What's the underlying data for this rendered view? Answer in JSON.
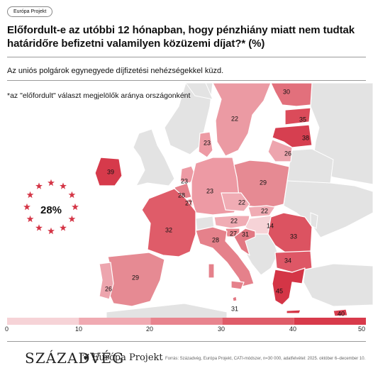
{
  "badge": "Európa Projekt",
  "title_line1": "Előfordult-e az utóbbi 12 hónapban, hogy pénzhiány miatt nem tudtak",
  "title_line2": "határidőre befizetni valamilyen közüzemi díjat?* (%)",
  "subtitle": "Az uniós polgárok egynegyede díjfizetési nehézségekkel küzd.",
  "note": "*az \"előfordult\" választ megjelölők aránya országonként",
  "eu_average": "28%",
  "legend": {
    "ticks": [
      "0",
      "10",
      "20",
      "30",
      "40",
      "50"
    ],
    "colors": [
      "#f6d3d7",
      "#f0aab2",
      "#e8848e",
      "#df5c69",
      "#d83a4b"
    ]
  },
  "countries": [
    {
      "name": "Finnország",
      "value": "30"
    },
    {
      "name": "Svédország",
      "value": "22"
    },
    {
      "name": "Észtország",
      "value": "35"
    },
    {
      "name": "Lettország",
      "value": "38"
    },
    {
      "name": "Litvánia",
      "value": "26"
    },
    {
      "name": "Dánia",
      "value": "23"
    },
    {
      "name": "Írország",
      "value": "39"
    },
    {
      "name": "Hollandia",
      "value": "23"
    },
    {
      "name": "Belgium",
      "value": "28"
    },
    {
      "name": "Luxemburg",
      "value": "27"
    },
    {
      "name": "Németország",
      "value": "23"
    },
    {
      "name": "Lengyelország",
      "value": "29"
    },
    {
      "name": "Csehország",
      "value": "22"
    },
    {
      "name": "Szlovákia",
      "value": "22"
    },
    {
      "name": "Ausztria",
      "value": "22"
    },
    {
      "name": "Magyarország",
      "value": "14"
    },
    {
      "name": "Franciaország",
      "value": "32"
    },
    {
      "name": "Szlovénia",
      "value": "27"
    },
    {
      "name": "Horvátország",
      "value": "31"
    },
    {
      "name": "Olaszország",
      "value": "28"
    },
    {
      "name": "Románia",
      "value": "33"
    },
    {
      "name": "Bulgária",
      "value": "34"
    },
    {
      "name": "Görögország",
      "value": "45"
    },
    {
      "name": "Spanyolország",
      "value": "29"
    },
    {
      "name": "Portugália",
      "value": "26"
    },
    {
      "name": "Málta",
      "value": "31"
    },
    {
      "name": "Ciprus",
      "value": "40"
    }
  ],
  "footer": {
    "logo": "SZÁZADVÉG",
    "project": "Európa Projekt",
    "source": "Forrás: Századvég, Európa Projekt, CATI-módszer, n=30 000, adatfelvétel: 2025. október 6–december 10."
  }
}
